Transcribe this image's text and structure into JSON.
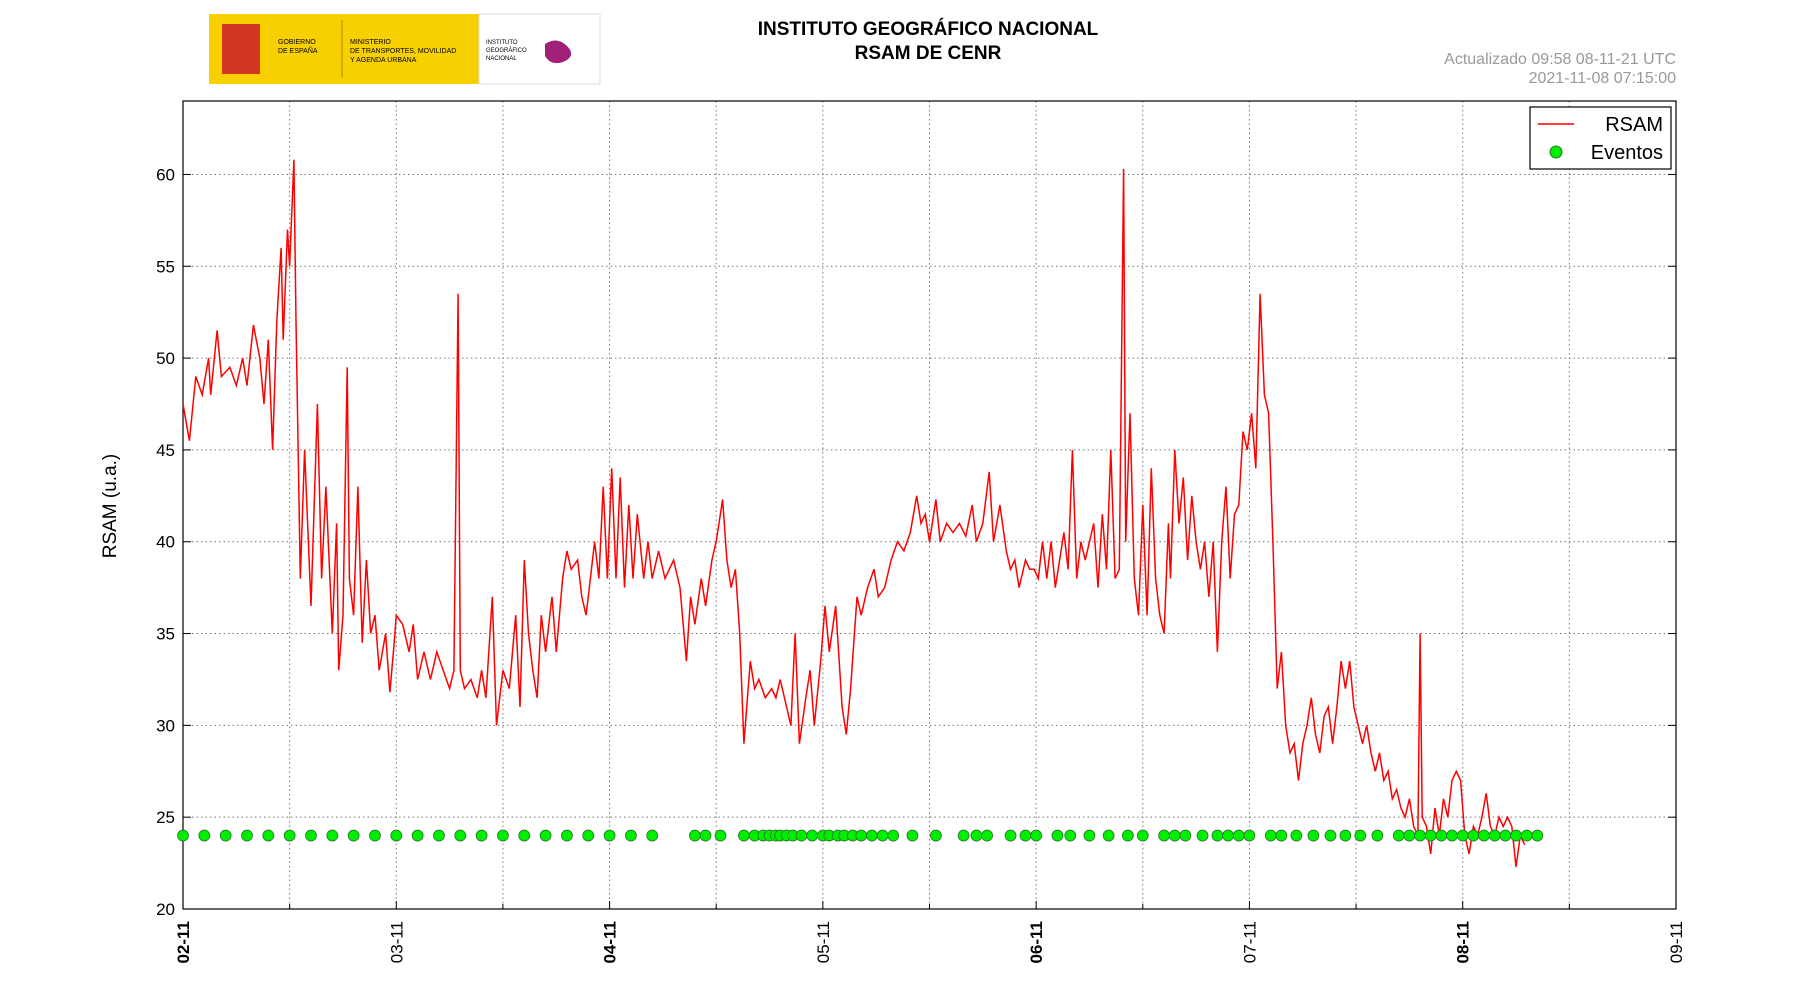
{
  "header": {
    "logo_lines": [
      "GOBIERNO",
      "DE ESPAÑA",
      "MINISTERIO",
      "DE TRANSPORTES, MOVILIDAD",
      "Y AGENDA URBANA",
      "INSTITUTO",
      "GEOGRÁFICO",
      "NACIONAL"
    ],
    "updated": "Actualizado 09:58 08-11-21 UTC",
    "timestamp": "2021-11-08 07:15:00"
  },
  "chart_data": {
    "type": "line",
    "title": "INSTITUTO GEOGRÁFICO NACIONAL",
    "subtitle": "RSAM DE CENR",
    "ylabel": "RSAM (u.a.)",
    "xlim": [
      0,
      7
    ],
    "ylim": [
      20,
      64
    ],
    "xticks": [
      {
        "value": 0,
        "label": "02-11",
        "bold": true
      },
      {
        "value": 1,
        "label": "03-11",
        "bold": false
      },
      {
        "value": 2,
        "label": "04-11",
        "bold": true
      },
      {
        "value": 3,
        "label": "05-11",
        "bold": false
      },
      {
        "value": 4,
        "label": "06-11",
        "bold": true
      },
      {
        "value": 5,
        "label": "07-11",
        "bold": false
      },
      {
        "value": 6,
        "label": "08-11",
        "bold": true
      },
      {
        "value": 7,
        "label": "09-11",
        "bold": false
      }
    ],
    "xminor_ticks": [
      0.5,
      1.5,
      2.5,
      3.5,
      4.5,
      5.5,
      6.5
    ],
    "yticks": [
      20,
      25,
      30,
      35,
      40,
      45,
      50,
      55,
      60
    ],
    "grid": true,
    "legend": "upper right",
    "series": [
      {
        "name": "RSAM",
        "color": "#ff0000",
        "marker": "line",
        "x": [
          0,
          0.03,
          0.06,
          0.09,
          0.12,
          0.13,
          0.16,
          0.18,
          0.22,
          0.25,
          0.28,
          0.3,
          0.33,
          0.36,
          0.38,
          0.4,
          0.42,
          0.44,
          0.46,
          0.47,
          0.49,
          0.5,
          0.52,
          0.53,
          0.55,
          0.57,
          0.6,
          0.63,
          0.65,
          0.67,
          0.7,
          0.72,
          0.73,
          0.75,
          0.77,
          0.78,
          0.8,
          0.82,
          0.84,
          0.86,
          0.88,
          0.9,
          0.92,
          0.95,
          0.97,
          0.99,
          1,
          1.03,
          1.06,
          1.08,
          1.1,
          1.13,
          1.16,
          1.19,
          1.22,
          1.25,
          1.27,
          1.29,
          1.3,
          1.32,
          1.35,
          1.38,
          1.4,
          1.42,
          1.45,
          1.47,
          1.5,
          1.53,
          1.56,
          1.58,
          1.6,
          1.62,
          1.64,
          1.66,
          1.68,
          1.7,
          1.73,
          1.75,
          1.78,
          1.8,
          1.82,
          1.85,
          1.87,
          1.89,
          1.91,
          1.93,
          1.95,
          1.97,
          1.99,
          2.01,
          2.03,
          2.05,
          2.07,
          2.09,
          2.11,
          2.13,
          2.16,
          2.18,
          2.2,
          2.23,
          2.26,
          2.3,
          2.33,
          2.36,
          2.38,
          2.4,
          2.43,
          2.45,
          2.48,
          2.5,
          2.53,
          2.55,
          2.57,
          2.59,
          2.61,
          2.63,
          2.66,
          2.68,
          2.7,
          2.73,
          2.76,
          2.78,
          2.8,
          2.83,
          2.85,
          2.87,
          2.89,
          2.92,
          2.94,
          2.96,
          2.99,
          3.01,
          3.03,
          3.06,
          3.09,
          3.11,
          3.13,
          3.16,
          3.18,
          3.21,
          3.24,
          3.26,
          3.29,
          3.32,
          3.35,
          3.38,
          3.41,
          3.44,
          3.46,
          3.48,
          3.5,
          3.53,
          3.55,
          3.58,
          3.61,
          3.64,
          3.67,
          3.7,
          3.72,
          3.75,
          3.78,
          3.8,
          3.83,
          3.86,
          3.88,
          3.9,
          3.92,
          3.95,
          3.97,
          3.99,
          4.01,
          4.03,
          4.05,
          4.07,
          4.09,
          4.11,
          4.13,
          4.15,
          4.17,
          4.19,
          4.21,
          4.23,
          4.25,
          4.27,
          4.29,
          4.31,
          4.33,
          4.35,
          4.37,
          4.39,
          4.41,
          4.42,
          4.44,
          4.46,
          4.48,
          4.5,
          4.52,
          4.54,
          4.56,
          4.58,
          4.6,
          4.62,
          4.63,
          4.65,
          4.67,
          4.69,
          4.71,
          4.73,
          4.75,
          4.77,
          4.79,
          4.81,
          4.83,
          4.85,
          4.87,
          4.89,
          4.91,
          4.93,
          4.95,
          4.97,
          4.99,
          5.01,
          5.03,
          5.05,
          5.07,
          5.09,
          5.11,
          5.13,
          5.15,
          5.17,
          5.19,
          5.21,
          5.23,
          5.25,
          5.27,
          5.29,
          5.31,
          5.33,
          5.35,
          5.37,
          5.39,
          5.41,
          5.43,
          5.45,
          5.47,
          5.49,
          5.51,
          5.53,
          5.55,
          5.57,
          5.59,
          5.61,
          5.63,
          5.65,
          5.67,
          5.69,
          5.71,
          5.73,
          5.75,
          5.77,
          5.79,
          5.8,
          5.81,
          5.83,
          5.85,
          5.87,
          5.89,
          5.91,
          5.93,
          5.95,
          5.97,
          5.99,
          6.01,
          6.03,
          6.05,
          6.07,
          6.09,
          6.11,
          6.13,
          6.15,
          6.17,
          6.19,
          6.21,
          6.23,
          6.25,
          6.27,
          6.29
        ],
        "values": [
          47.5,
          45.5,
          49,
          48,
          50,
          48,
          51.5,
          49,
          49.5,
          48.5,
          50,
          48.5,
          51.8,
          50,
          47.5,
          51,
          45,
          52,
          56,
          51,
          57,
          55,
          60.8,
          52,
          38,
          45,
          36.5,
          47.5,
          38,
          43,
          35,
          41,
          33,
          36,
          49.5,
          38,
          36,
          43,
          34.5,
          39,
          35,
          36,
          33,
          35,
          31.8,
          34.5,
          36,
          35.5,
          34,
          35.5,
          32.5,
          34,
          32.5,
          34,
          33,
          32,
          33,
          53.5,
          33,
          32,
          32.5,
          31.5,
          33,
          31.5,
          37,
          30,
          33,
          32,
          36,
          31,
          39,
          35,
          33,
          31.5,
          36,
          34,
          37,
          34,
          38,
          39.5,
          38.5,
          39,
          37,
          36,
          38,
          40,
          38,
          43,
          38,
          44,
          38,
          43.5,
          37.5,
          42,
          38,
          41.5,
          38,
          40,
          38,
          39.5,
          38,
          39,
          37.5,
          33.5,
          37,
          35.5,
          38,
          36.5,
          39,
          40,
          42.3,
          39,
          37.5,
          38.5,
          35,
          29,
          33.5,
          32,
          32.5,
          31.5,
          32,
          31.5,
          32.5,
          31,
          30,
          35,
          29,
          31.5,
          33,
          30,
          33.5,
          36.5,
          34,
          36.5,
          31,
          29.5,
          32,
          37,
          36,
          37.5,
          38.5,
          37,
          37.5,
          39,
          40,
          39.5,
          40.5,
          42.5,
          41,
          41.5,
          40,
          42.3,
          40,
          41,
          40.5,
          41,
          40.3,
          42,
          40,
          41,
          43.8,
          40,
          42,
          39.5,
          38.5,
          39,
          37.5,
          39,
          38.5,
          38.5,
          38,
          40,
          38,
          40,
          37.5,
          39,
          40.5,
          38.5,
          45,
          38,
          40,
          39,
          40,
          41,
          37.5,
          41.5,
          38.5,
          45,
          38,
          38.5,
          60.3,
          40,
          47,
          38,
          36,
          42,
          36,
          44,
          38,
          36,
          35,
          41,
          38,
          45,
          41,
          43.5,
          39,
          42.5,
          40,
          38.5,
          40,
          37,
          40,
          34,
          40,
          43,
          38,
          41.5,
          42,
          46,
          45,
          47,
          44,
          53.5,
          48,
          47,
          40,
          32,
          34,
          30,
          28.5,
          29,
          27,
          29,
          30,
          31.5,
          29.5,
          28.5,
          30.5,
          31,
          29,
          31,
          33.5,
          32,
          33.5,
          31,
          30,
          29,
          30,
          28.5,
          27.5,
          28.5,
          27,
          27.5,
          26,
          26.5,
          25.5,
          25,
          26,
          24.5,
          24,
          35,
          25,
          24.5,
          23,
          25.5,
          24,
          26,
          25,
          27,
          27.5,
          27,
          24,
          23,
          24.5,
          24,
          25,
          26.3,
          24.5,
          24,
          25,
          24.5,
          25,
          24.5,
          22.3,
          24,
          23.5
        ]
      },
      {
        "name": "Eventos",
        "color": "#00ee00",
        "marker": "circle",
        "x": [
          0,
          0.1,
          0.2,
          0.3,
          0.4,
          0.5,
          0.6,
          0.7,
          0.8,
          0.9,
          1,
          1.1,
          1.2,
          1.3,
          1.4,
          1.5,
          1.6,
          1.7,
          1.8,
          1.9,
          2,
          2.1,
          2.2,
          2.4,
          2.45,
          2.52,
          2.63,
          2.68,
          2.72,
          2.75,
          2.78,
          2.8,
          2.83,
          2.86,
          2.9,
          2.95,
          3,
          3.03,
          3.07,
          3.1,
          3.14,
          3.18,
          3.23,
          3.28,
          3.33,
          3.42,
          3.53,
          3.66,
          3.72,
          3.77,
          3.88,
          3.95,
          4,
          4.1,
          4.16,
          4.25,
          4.34,
          4.43,
          4.5,
          4.6,
          4.65,
          4.7,
          4.78,
          4.85,
          4.9,
          4.95,
          5,
          5.1,
          5.15,
          5.22,
          5.3,
          5.38,
          5.45,
          5.52,
          5.6,
          5.7,
          5.75,
          5.8,
          5.85,
          5.9,
          5.95,
          6,
          6.05,
          6.1,
          6.15,
          6.2,
          6.25,
          6.3,
          6.35
        ],
        "values": [
          24,
          24,
          24,
          24,
          24,
          24,
          24,
          24,
          24,
          24,
          24,
          24,
          24,
          24,
          24,
          24,
          24,
          24,
          24,
          24,
          24,
          24,
          24,
          24,
          24,
          24,
          24,
          24,
          24,
          24,
          24,
          24,
          24,
          24,
          24,
          24,
          24,
          24,
          24,
          24,
          24,
          24,
          24,
          24,
          24,
          24,
          24,
          24,
          24,
          24,
          24,
          24,
          24,
          24,
          24,
          24,
          24,
          24,
          24,
          24,
          24,
          24,
          24,
          24,
          24,
          24,
          24,
          24,
          24,
          24,
          24,
          24,
          24,
          24,
          24,
          24,
          24,
          24,
          24,
          24,
          24,
          24,
          24,
          24,
          24,
          24,
          24,
          24,
          24
        ]
      }
    ]
  }
}
